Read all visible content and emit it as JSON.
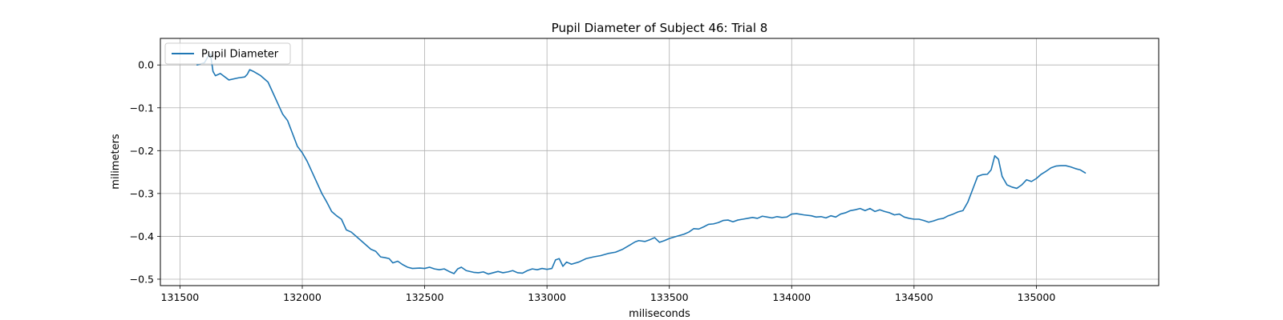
{
  "chart_data": {
    "type": "line",
    "title": "Pupil Diameter of Subject 46: Trial 8",
    "xlabel": "miliseconds",
    "ylabel": "milimeters",
    "xlim": [
      131420,
      135500
    ],
    "ylim": [
      -0.515,
      0.062
    ],
    "xticks": [
      131500,
      132000,
      132500,
      133000,
      133500,
      134000,
      134500,
      135000
    ],
    "xtick_labels": [
      "131500",
      "132000",
      "132500",
      "133000",
      "133500",
      "134000",
      "134500",
      "135000"
    ],
    "yticks": [
      0.0,
      -0.1,
      -0.2,
      -0.3,
      -0.4,
      -0.5
    ],
    "ytick_labels": [
      "0.0",
      "−0.1",
      "−0.2",
      "−0.3",
      "−0.4",
      "−0.5"
    ],
    "grid": true,
    "legend_position": "upper-left",
    "series": [
      {
        "name": "Pupil Diameter",
        "color": "#1f77b4",
        "points": [
          [
            131570,
            0.0
          ],
          [
            131600,
            0.005
          ],
          [
            131615,
            0.02
          ],
          [
            131625,
            0.025
          ],
          [
            131635,
            -0.015
          ],
          [
            131645,
            -0.025
          ],
          [
            131665,
            -0.02
          ],
          [
            131700,
            -0.035
          ],
          [
            131740,
            -0.03
          ],
          [
            131765,
            -0.028
          ],
          [
            131775,
            -0.022
          ],
          [
            131785,
            -0.011
          ],
          [
            131800,
            -0.015
          ],
          [
            131830,
            -0.025
          ],
          [
            131860,
            -0.04
          ],
          [
            131880,
            -0.065
          ],
          [
            131900,
            -0.09
          ],
          [
            131920,
            -0.115
          ],
          [
            131940,
            -0.13
          ],
          [
            131960,
            -0.16
          ],
          [
            131980,
            -0.19
          ],
          [
            132000,
            -0.205
          ],
          [
            132020,
            -0.225
          ],
          [
            132040,
            -0.25
          ],
          [
            132060,
            -0.275
          ],
          [
            132080,
            -0.3
          ],
          [
            132100,
            -0.32
          ],
          [
            132120,
            -0.342
          ],
          [
            132140,
            -0.352
          ],
          [
            132160,
            -0.36
          ],
          [
            132180,
            -0.385
          ],
          [
            132200,
            -0.39
          ],
          [
            132220,
            -0.4
          ],
          [
            132240,
            -0.41
          ],
          [
            132260,
            -0.42
          ],
          [
            132280,
            -0.43
          ],
          [
            132300,
            -0.435
          ],
          [
            132320,
            -0.448
          ],
          [
            132340,
            -0.45
          ],
          [
            132355,
            -0.452
          ],
          [
            132370,
            -0.462
          ],
          [
            132390,
            -0.458
          ],
          [
            132410,
            -0.466
          ],
          [
            132430,
            -0.472
          ],
          [
            132450,
            -0.475
          ],
          [
            132480,
            -0.474
          ],
          [
            132500,
            -0.475
          ],
          [
            132520,
            -0.472
          ],
          [
            132540,
            -0.476
          ],
          [
            132560,
            -0.478
          ],
          [
            132580,
            -0.476
          ],
          [
            132600,
            -0.482
          ],
          [
            132620,
            -0.487
          ],
          [
            132635,
            -0.476
          ],
          [
            132650,
            -0.472
          ],
          [
            132670,
            -0.48
          ],
          [
            132700,
            -0.484
          ],
          [
            132720,
            -0.485
          ],
          [
            132740,
            -0.483
          ],
          [
            132760,
            -0.488
          ],
          [
            132780,
            -0.485
          ],
          [
            132800,
            -0.482
          ],
          [
            132820,
            -0.485
          ],
          [
            132840,
            -0.483
          ],
          [
            132860,
            -0.48
          ],
          [
            132880,
            -0.485
          ],
          [
            132900,
            -0.486
          ],
          [
            132920,
            -0.48
          ],
          [
            132940,
            -0.476
          ],
          [
            132960,
            -0.478
          ],
          [
            132980,
            -0.475
          ],
          [
            133000,
            -0.477
          ],
          [
            133020,
            -0.475
          ],
          [
            133035,
            -0.455
          ],
          [
            133050,
            -0.452
          ],
          [
            133065,
            -0.47
          ],
          [
            133080,
            -0.46
          ],
          [
            133100,
            -0.465
          ],
          [
            133130,
            -0.46
          ],
          [
            133160,
            -0.452
          ],
          [
            133190,
            -0.448
          ],
          [
            133220,
            -0.445
          ],
          [
            133250,
            -0.44
          ],
          [
            133280,
            -0.437
          ],
          [
            133310,
            -0.43
          ],
          [
            133340,
            -0.42
          ],
          [
            133360,
            -0.413
          ],
          [
            133375,
            -0.41
          ],
          [
            133400,
            -0.412
          ],
          [
            133420,
            -0.408
          ],
          [
            133440,
            -0.403
          ],
          [
            133460,
            -0.414
          ],
          [
            133480,
            -0.41
          ],
          [
            133500,
            -0.405
          ],
          [
            133530,
            -0.4
          ],
          [
            133560,
            -0.395
          ],
          [
            133580,
            -0.39
          ],
          [
            133600,
            -0.382
          ],
          [
            133620,
            -0.383
          ],
          [
            133640,
            -0.378
          ],
          [
            133660,
            -0.372
          ],
          [
            133680,
            -0.371
          ],
          [
            133700,
            -0.368
          ],
          [
            133720,
            -0.363
          ],
          [
            133740,
            -0.362
          ],
          [
            133760,
            -0.366
          ],
          [
            133780,
            -0.362
          ],
          [
            133800,
            -0.36
          ],
          [
            133820,
            -0.358
          ],
          [
            133840,
            -0.356
          ],
          [
            133860,
            -0.358
          ],
          [
            133880,
            -0.353
          ],
          [
            133900,
            -0.355
          ],
          [
            133920,
            -0.357
          ],
          [
            133940,
            -0.354
          ],
          [
            133960,
            -0.356
          ],
          [
            133980,
            -0.355
          ],
          [
            134000,
            -0.348
          ],
          [
            134020,
            -0.347
          ],
          [
            134050,
            -0.35
          ],
          [
            134080,
            -0.352
          ],
          [
            134100,
            -0.355
          ],
          [
            134120,
            -0.354
          ],
          [
            134140,
            -0.357
          ],
          [
            134160,
            -0.352
          ],
          [
            134180,
            -0.355
          ],
          [
            134200,
            -0.348
          ],
          [
            134220,
            -0.345
          ],
          [
            134240,
            -0.34
          ],
          [
            134260,
            -0.338
          ],
          [
            134280,
            -0.335
          ],
          [
            134300,
            -0.34
          ],
          [
            134320,
            -0.335
          ],
          [
            134340,
            -0.342
          ],
          [
            134360,
            -0.338
          ],
          [
            134380,
            -0.342
          ],
          [
            134400,
            -0.345
          ],
          [
            134420,
            -0.35
          ],
          [
            134440,
            -0.348
          ],
          [
            134460,
            -0.355
          ],
          [
            134480,
            -0.358
          ],
          [
            134500,
            -0.36
          ],
          [
            134520,
            -0.36
          ],
          [
            134540,
            -0.363
          ],
          [
            134560,
            -0.367
          ],
          [
            134580,
            -0.364
          ],
          [
            134600,
            -0.36
          ],
          [
            134620,
            -0.358
          ],
          [
            134640,
            -0.352
          ],
          [
            134660,
            -0.348
          ],
          [
            134680,
            -0.343
          ],
          [
            134700,
            -0.34
          ],
          [
            134720,
            -0.32
          ],
          [
            134740,
            -0.29
          ],
          [
            134760,
            -0.26
          ],
          [
            134780,
            -0.256
          ],
          [
            134800,
            -0.255
          ],
          [
            134815,
            -0.245
          ],
          [
            134830,
            -0.212
          ],
          [
            134845,
            -0.22
          ],
          [
            134860,
            -0.26
          ],
          [
            134880,
            -0.28
          ],
          [
            134900,
            -0.285
          ],
          [
            134920,
            -0.288
          ],
          [
            134940,
            -0.28
          ],
          [
            134960,
            -0.268
          ],
          [
            134980,
            -0.272
          ],
          [
            135000,
            -0.265
          ],
          [
            135020,
            -0.255
          ],
          [
            135040,
            -0.248
          ],
          [
            135060,
            -0.24
          ],
          [
            135080,
            -0.236
          ],
          [
            135100,
            -0.235
          ],
          [
            135120,
            -0.235
          ],
          [
            135140,
            -0.238
          ],
          [
            135160,
            -0.242
          ],
          [
            135180,
            -0.245
          ],
          [
            135200,
            -0.252
          ]
        ]
      }
    ]
  }
}
